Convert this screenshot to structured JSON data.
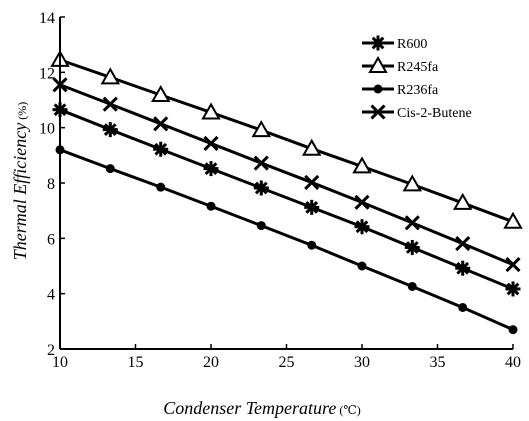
{
  "chart_data": {
    "type": "line",
    "xlabel": "Condenser Temperature",
    "xunit": "(℃)",
    "ylabel": "Thermal Efficiency",
    "yunit": "(%)",
    "xlim": [
      10,
      40
    ],
    "ylim": [
      2,
      14
    ],
    "xticks": [
      10,
      15,
      20,
      25,
      30,
      35,
      40
    ],
    "yticks": [
      2,
      4,
      6,
      8,
      10,
      12,
      14
    ],
    "grid": false,
    "legend_position": "top-right",
    "x": [
      10,
      13.33,
      16.67,
      20,
      23.33,
      26.67,
      30,
      33.33,
      36.67,
      40
    ],
    "series": [
      {
        "name": "R600",
        "marker": "asterisk",
        "values": [
          10.65,
          9.93,
          9.22,
          8.52,
          7.82,
          7.12,
          6.42,
          5.67,
          4.92,
          4.17
        ]
      },
      {
        "name": "R245fa",
        "marker": "triangle",
        "values": [
          12.45,
          11.82,
          11.18,
          10.55,
          9.91,
          9.24,
          8.6,
          7.95,
          7.28,
          6.6
        ]
      },
      {
        "name": "R236fa",
        "marker": "dot",
        "values": [
          9.2,
          8.52,
          7.85,
          7.16,
          6.46,
          5.75,
          5.0,
          4.26,
          3.5,
          2.7
        ]
      },
      {
        "name": "Cis-2-Butene",
        "marker": "cross",
        "values": [
          11.55,
          10.85,
          10.14,
          9.43,
          8.72,
          8.02,
          7.3,
          6.56,
          5.81,
          5.05
        ]
      }
    ],
    "colors": {
      "line": "#000000",
      "background": "#ffffff"
    }
  }
}
